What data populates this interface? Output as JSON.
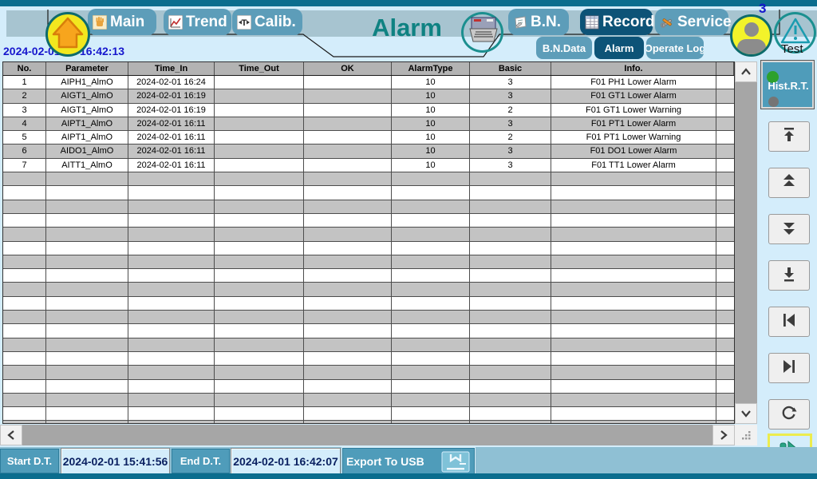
{
  "titlebar": {
    "date": "2024-02-01",
    "time": "16:42:13",
    "page_title": "Alarm",
    "user_badge_count": "3",
    "user_mode_label": "Test",
    "icons": [
      "home-icon",
      "printer-icon",
      "user-avatar-icon",
      "alarm-warning-icon"
    ]
  },
  "nav": {
    "tabs": [
      {
        "label": "Main",
        "icon": "hand-icon",
        "active": false
      },
      {
        "label": "Trend",
        "icon": "trend-chart-icon",
        "active": false
      },
      {
        "label": "Calib.",
        "icon": "calibration-icon",
        "active": false
      },
      {
        "label": "B.N.",
        "icon": "notepad-icon",
        "active": false
      },
      {
        "label": "Record",
        "icon": "spreadsheet-icon",
        "active": true
      },
      {
        "label": "Service",
        "icon": "tools-icon",
        "active": false
      }
    ],
    "subtabs": [
      {
        "label": "B.N.Data",
        "active": false
      },
      {
        "label": "Alarm",
        "active": true
      },
      {
        "label": "Operate Log",
        "active": false
      }
    ]
  },
  "table": {
    "columns": [
      "No.",
      "Parameter",
      "Time_In",
      "Time_Out",
      "OK",
      "AlarmType",
      "Basic",
      "Info.",
      ""
    ],
    "rows": [
      [
        "1",
        "AIPH1_AlmO",
        "2024-02-01 16:24",
        "",
        "",
        "10",
        "3",
        "F01 PH1 Lower Alarm",
        ""
      ],
      [
        "2",
        "AIGT1_AlmO",
        "2024-02-01 16:19",
        "",
        "",
        "10",
        "3",
        "F01 GT1 Lower Alarm",
        ""
      ],
      [
        "3",
        "AIGT1_AlmO",
        "2024-02-01 16:19",
        "",
        "",
        "10",
        "2",
        "F01 GT1 Lower Warning",
        ""
      ],
      [
        "4",
        "AIPT1_AlmO",
        "2024-02-01 16:11",
        "",
        "",
        "10",
        "3",
        "F01 PT1 Lower Alarm",
        ""
      ],
      [
        "5",
        "AIPT1_AlmO",
        "2024-02-01 16:11",
        "",
        "",
        "10",
        "2",
        "F01 PT1 Lower Warning",
        ""
      ],
      [
        "6",
        "AIDO1_AlmO",
        "2024-02-01 16:11",
        "",
        "",
        "10",
        "3",
        "F01 DO1 Lower Alarm",
        ""
      ],
      [
        "7",
        "AITT1_AlmO",
        "2024-02-01 16:11",
        "",
        "",
        "10",
        "3",
        "F01 TT1 Lower Alarm",
        ""
      ]
    ],
    "visible_row_slots": 26
  },
  "sidebar": {
    "hist_button_label": "Hist.R.T.",
    "hist_status_dots": [
      "green",
      "gray"
    ],
    "buttons": [
      {
        "icon": "scroll-to-top-icon"
      },
      {
        "icon": "page-up-icon"
      },
      {
        "icon": "page-down-icon"
      },
      {
        "icon": "scroll-to-bottom-icon"
      },
      {
        "icon": "first-record-icon"
      },
      {
        "icon": "last-record-icon"
      },
      {
        "icon": "refresh-icon"
      },
      {
        "icon": "resume-play-icon",
        "highlighted": true
      }
    ]
  },
  "footer": {
    "start_label": "Start D.T.",
    "start_value": "2024-02-01 15:41:56",
    "end_label": "End D.T.",
    "end_value": "2024-02-01 16:42:07",
    "export_label": "Export To USB"
  },
  "colors": {
    "strip_teal": "#0b6d8e",
    "band": "#a7c4d0",
    "background": "#d4edfb",
    "tab_inactive": "#5d9db9",
    "tab_active": "#0d5377",
    "title_teal": "#0f8282",
    "row_gray": "#c3c3c3",
    "header_gray": "#b3b3b3",
    "teal_button": "#4f9cba",
    "play_green": "#2aa385",
    "highlight_yellow": "#ecec4e",
    "date_blue": "#1717cd"
  }
}
